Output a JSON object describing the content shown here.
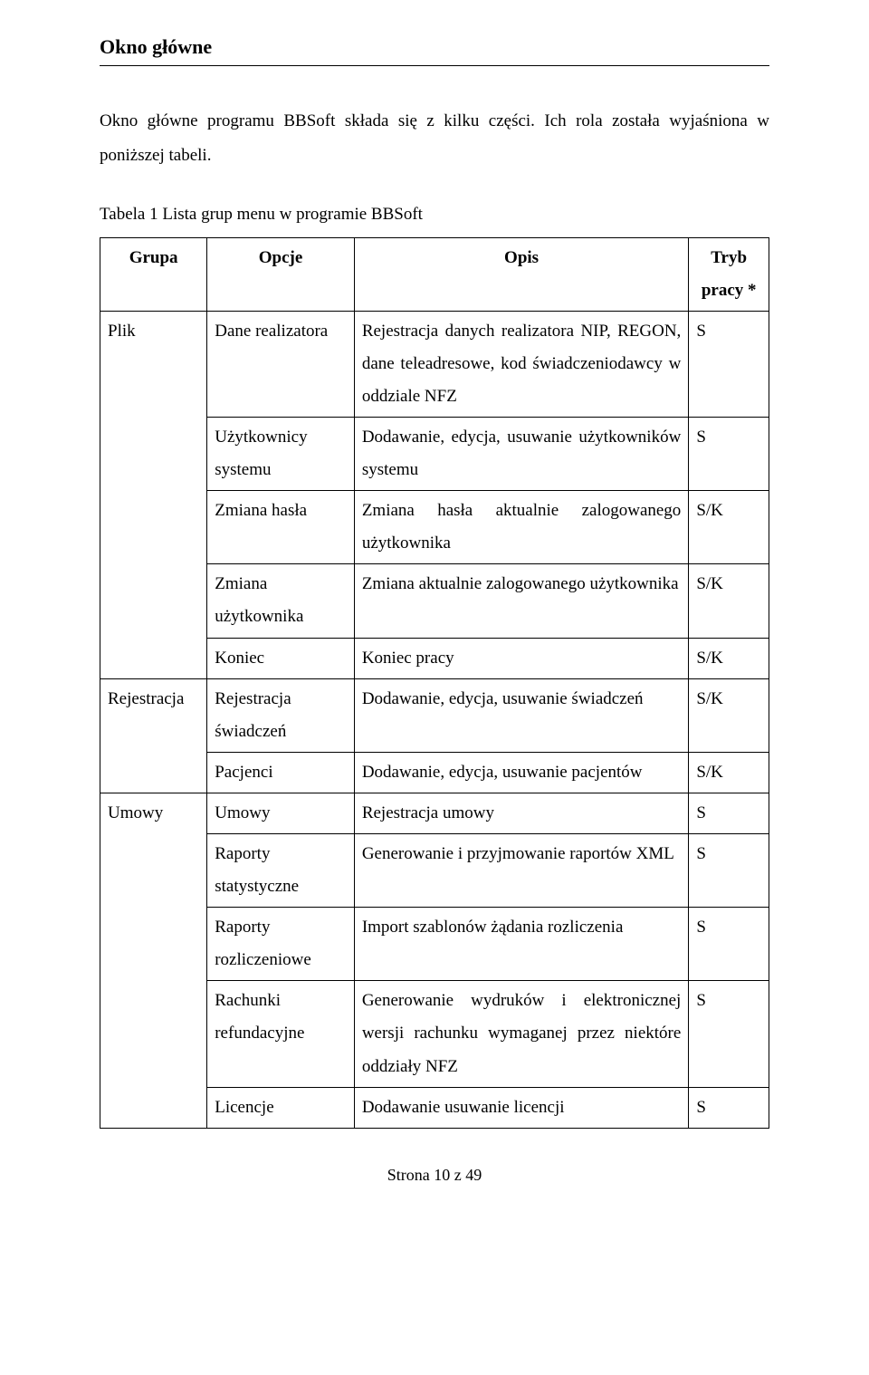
{
  "heading": "Okno główne",
  "intro": "Okno główne programu BBSoft składa się z kilku części. Ich rola została wyjaśniona w poniższej tabeli.",
  "caption": "Tabela 1 Lista grup menu w programie BBSoft",
  "columns": {
    "grupa": "Grupa",
    "opcje": "Opcje",
    "opis": "Opis",
    "tryb": "Tryb pracy *"
  },
  "groups": [
    {
      "name": "Plik",
      "rows": [
        {
          "opcje": "Dane realizatora",
          "opis": "Rejestracja danych realizatora NIP, REGON, dane teleadresowe, kod świadczeniodawcy w oddziale NFZ",
          "tryb": "S"
        },
        {
          "opcje": "Użytkownicy systemu",
          "opis": "Dodawanie, edycja, usuwanie użytkowników systemu",
          "tryb": "S"
        },
        {
          "opcje": "Zmiana hasła",
          "opis": "Zmiana hasła aktualnie zalogowanego użytkownika",
          "tryb": "S/K"
        },
        {
          "opcje": "Zmiana użytkownika",
          "opis": "Zmiana aktualnie zalogowanego użytkownika",
          "tryb": "S/K"
        },
        {
          "opcje": "Koniec",
          "opis": "Koniec pracy",
          "tryb": "S/K"
        }
      ]
    },
    {
      "name": "Rejestracja",
      "rows": [
        {
          "opcje": "Rejestracja świadczeń",
          "opis": "Dodawanie, edycja, usuwanie świadczeń",
          "tryb": "S/K"
        },
        {
          "opcje": "Pacjenci",
          "opis": "Dodawanie, edycja, usuwanie pacjentów",
          "tryb": "S/K"
        }
      ]
    },
    {
      "name": "Umowy",
      "rows": [
        {
          "opcje": "Umowy",
          "opis": "Rejestracja umowy",
          "tryb": "S"
        },
        {
          "opcje": "Raporty statystyczne",
          "opis": "Generowanie i przyjmowanie raportów XML",
          "tryb": "S"
        },
        {
          "opcje": "Raporty rozliczeniowe",
          "opis": "Import szablonów żądania rozliczenia",
          "tryb": "S"
        },
        {
          "opcje": "Rachunki refundacyjne",
          "opis": "Generowanie wydruków i elektronicznej wersji rachunku wymaganej przez niektóre oddziały NFZ",
          "tryb": "S"
        },
        {
          "opcje": "Licencje",
          "opis": "Dodawanie usuwanie licencji",
          "tryb": "S"
        }
      ]
    }
  ],
  "footer": "Strona 10 z 49"
}
